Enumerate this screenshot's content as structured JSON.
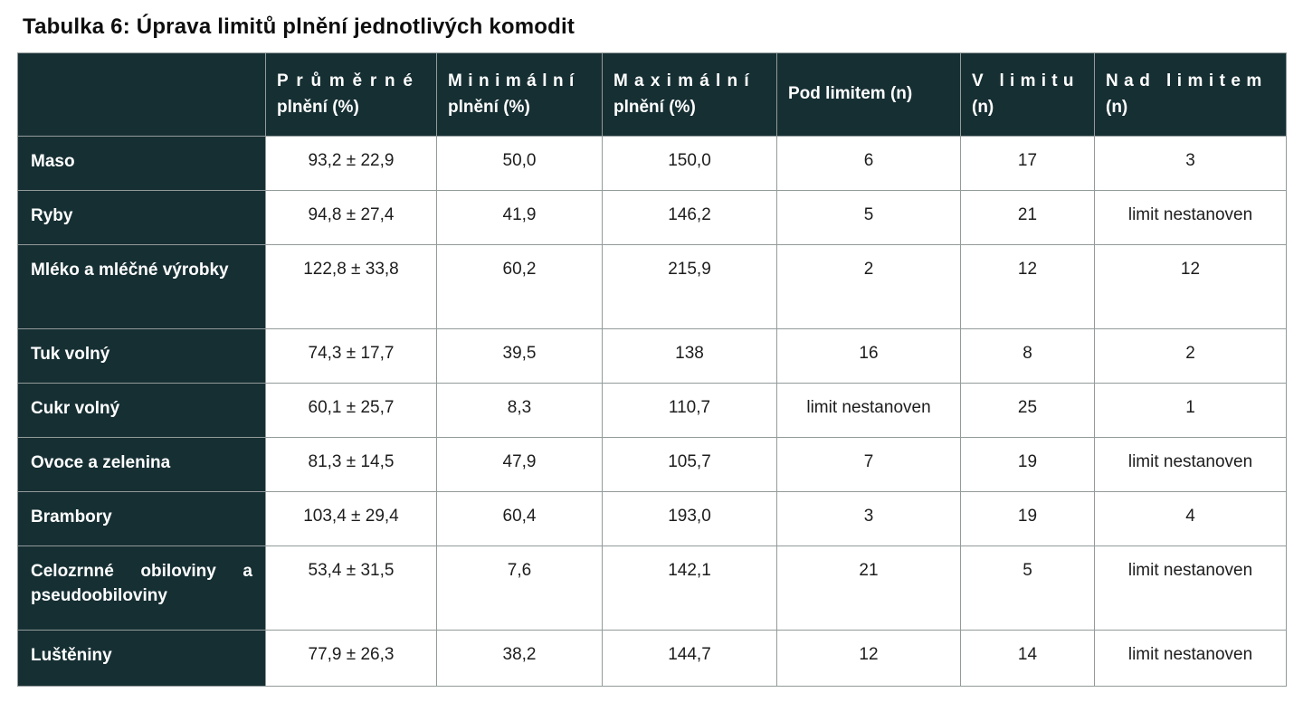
{
  "title": "Tabulka 6: Úprava limitů plnění jednotlivých komodit",
  "colors": {
    "header_bg": "#162f33",
    "header_text": "#ffffff",
    "grid_line": "#939a9a",
    "cell_text": "#1d1d1d"
  },
  "table": {
    "headers": [
      {
        "line1": "",
        "line2": ""
      },
      {
        "line1": "Průměrné",
        "line2": "plnění (%)"
      },
      {
        "line1": "Minimální",
        "line2": "plnění (%)"
      },
      {
        "line1": "Maximální",
        "line2": "plnění (%)"
      },
      {
        "line1": "Pod limitem (n)",
        "line2": ""
      },
      {
        "line1": "V limitu",
        "line2": "(n)"
      },
      {
        "line1": "Nad limitem",
        "line2": "(n)"
      }
    ],
    "rows": [
      {
        "label": "Maso",
        "cells": [
          "93,2 ± 22,9",
          "50,0",
          "150,0",
          "6",
          "17",
          "3"
        ]
      },
      {
        "label": "Ryby",
        "cells": [
          "94,8 ± 27,4",
          "41,9",
          "146,2",
          "5",
          "21",
          "limit nestanoven"
        ]
      },
      {
        "label": "Mléko a mléčné výrobky",
        "cells": [
          "122,8 ± 33,8",
          "60,2",
          "215,9",
          "2",
          "12",
          "12"
        ]
      },
      {
        "label": "Tuk volný",
        "cells": [
          "74,3 ± 17,7",
          "39,5",
          "138",
          "16",
          "8",
          "2"
        ]
      },
      {
        "label": "Cukr volný",
        "cells": [
          "60,1 ± 25,7",
          "8,3",
          "110,7",
          "limit nestanoven",
          "25",
          "1"
        ]
      },
      {
        "label": "Ovoce a zelenina",
        "cells": [
          "81,3 ± 14,5",
          "47,9",
          "105,7",
          "7",
          "19",
          "limit nestanoven"
        ]
      },
      {
        "label": "Brambory",
        "cells": [
          "103,4 ± 29,4",
          "60,4",
          "193,0",
          "3",
          "19",
          "4"
        ]
      },
      {
        "label": "Celozrnné obiloviny a pseudoobiloviny",
        "cells": [
          "53,4 ± 31,5",
          "7,6",
          "142,1",
          "21",
          "5",
          "limit nestanoven"
        ]
      },
      {
        "label": "Luštěniny",
        "cells": [
          "77,9 ± 26,3",
          "38,2",
          "144,7",
          "12",
          "14",
          "limit nestanoven"
        ]
      }
    ]
  }
}
